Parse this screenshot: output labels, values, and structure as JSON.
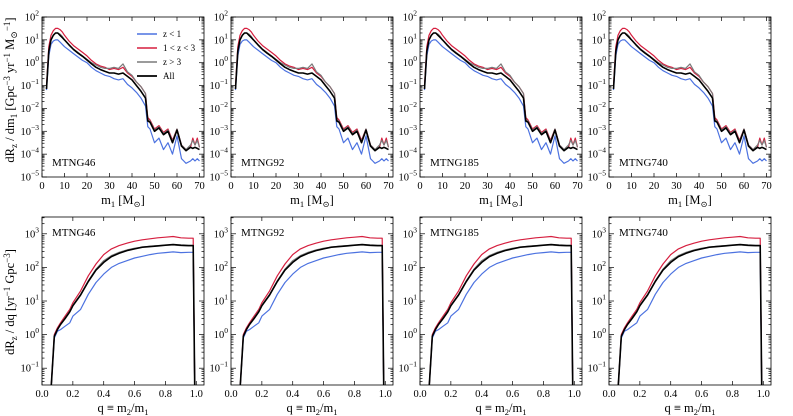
{
  "figure": {
    "top_row_ylabel": "dR_z / dm_1 [Gpc^-3 yr^-1 M_sun^-1]",
    "bottom_row_ylabel": "dR_z / dq [yr^-1 Gpc^-3]"
  },
  "chart_data": [
    {
      "type": "line",
      "row": "top",
      "panel_labels": [
        "MTNG46",
        "MTNG92",
        "MTNG185",
        "MTNG740"
      ],
      "xlabel": "m₁ [M⊙]",
      "ylabel": "dR_z/dm_1 [Gpc^-3 yr^-1 M_sun^-1]",
      "xlim": [
        0,
        72
      ],
      "xticks": [
        0,
        10,
        20,
        30,
        40,
        50,
        60,
        70
      ],
      "ylim_log10": [
        -5,
        2
      ],
      "yticks_log10": [
        -5,
        -4,
        -3,
        -2,
        -1,
        0,
        1,
        2
      ],
      "yscale": "log",
      "x": [
        2,
        3,
        4,
        5,
        6,
        7,
        8,
        9,
        10,
        12,
        14,
        16,
        18,
        20,
        22,
        24,
        26,
        28,
        30,
        32,
        34,
        36,
        38,
        40,
        42,
        44,
        46,
        47,
        48,
        50,
        52,
        54,
        56,
        58,
        60,
        62,
        63,
        64,
        66,
        67,
        68,
        69,
        70
      ],
      "series": [
        {
          "name": "z < 1",
          "color": "#4c72e0",
          "linewidth": 1.2,
          "log10_values": [
            -1.2,
            0.3,
            0.8,
            0.95,
            1.0,
            1.0,
            0.9,
            0.8,
            0.7,
            0.55,
            0.4,
            0.25,
            0.1,
            0.0,
            -0.2,
            -0.35,
            -0.45,
            -0.55,
            -0.6,
            -0.7,
            -0.75,
            -0.7,
            -0.95,
            -1.1,
            -1.3,
            -1.55,
            -1.9,
            -2.8,
            -2.9,
            -3.5,
            -3.3,
            -3.8,
            -3.5,
            -4.0,
            -3.2,
            -4.2,
            -4.3,
            -4.4,
            -4.3,
            -4.2,
            -4.3,
            -4.2,
            -4.3
          ]
        },
        {
          "name": "1 < z < 3",
          "color": "#d61f3f",
          "linewidth": 1.2,
          "log10_values": [
            -1.0,
            0.7,
            1.2,
            1.4,
            1.5,
            1.5,
            1.45,
            1.35,
            1.2,
            0.95,
            0.75,
            0.6,
            0.45,
            0.3,
            0.1,
            -0.05,
            -0.15,
            -0.2,
            -0.3,
            -0.25,
            -0.3,
            -0.2,
            -0.45,
            -0.6,
            -0.85,
            -1.05,
            -1.35,
            -2.4,
            -2.5,
            -2.9,
            -2.75,
            -3.05,
            -2.9,
            -3.4,
            -2.9,
            -3.6,
            -3.7,
            -3.8,
            -3.7,
            -3.3,
            -3.6,
            -3.3,
            -3.7
          ]
        },
        {
          "name": "z > 3",
          "color": "#7a7a7a",
          "linewidth": 1.2,
          "log10_values": [
            -1.1,
            0.5,
            1.0,
            1.2,
            1.3,
            1.3,
            1.25,
            1.15,
            1.0,
            0.8,
            0.6,
            0.45,
            0.3,
            0.15,
            0.0,
            -0.1,
            -0.2,
            -0.25,
            -0.25,
            -0.2,
            -0.25,
            -0.05,
            -0.4,
            -0.55,
            -0.85,
            -1.05,
            -1.35,
            -2.5,
            -2.55,
            -2.95,
            -2.8,
            -3.1,
            -2.95,
            -3.45,
            -2.9,
            -3.6,
            -3.7,
            -3.8,
            -3.6,
            -3.4,
            -3.6,
            -3.4,
            -3.7
          ]
        },
        {
          "name": "All",
          "color": "#000000",
          "linewidth": 1.6,
          "log10_values": [
            -1.15,
            0.5,
            1.0,
            1.2,
            1.3,
            1.3,
            1.2,
            1.1,
            1.0,
            0.78,
            0.58,
            0.42,
            0.28,
            0.12,
            -0.05,
            -0.2,
            -0.3,
            -0.38,
            -0.45,
            -0.45,
            -0.5,
            -0.45,
            -0.6,
            -0.75,
            -1.0,
            -1.25,
            -1.55,
            -2.55,
            -2.6,
            -3.0,
            -2.85,
            -3.15,
            -3.0,
            -3.5,
            -2.95,
            -3.65,
            -3.75,
            -3.85,
            -3.7,
            -3.75,
            -3.7,
            -3.75,
            -3.8
          ]
        }
      ],
      "legend": {
        "placement": "top-center",
        "panel": 0,
        "entries": [
          "z < 1",
          "1 < z < 3",
          "z > 3",
          "All"
        ]
      }
    },
    {
      "type": "line",
      "row": "bottom",
      "panel_labels": [
        "MTNG46",
        "MTNG92",
        "MTNG185",
        "MTNG740"
      ],
      "xlabel": "q ≡ m₂/m₁",
      "ylabel": "dR_z/dq [yr^-1 Gpc^-3]",
      "xlim": [
        0,
        1.05
      ],
      "xticks": [
        0.0,
        0.2,
        0.4,
        0.6,
        0.8,
        1.0
      ],
      "xtick_labels": [
        "0.0",
        "0.2",
        "0.4",
        "0.6",
        "0.8",
        "1.0"
      ],
      "ylim_log10": [
        -1.5,
        3.5
      ],
      "yticks_log10": [
        -1,
        0,
        1,
        2,
        3
      ],
      "yscale": "log",
      "x": [
        0.06,
        0.08,
        0.1,
        0.12,
        0.15,
        0.18,
        0.2,
        0.25,
        0.3,
        0.35,
        0.4,
        0.45,
        0.5,
        0.55,
        0.6,
        0.65,
        0.7,
        0.75,
        0.8,
        0.85,
        0.9,
        0.95,
        0.98,
        0.99
      ],
      "series": [
        {
          "name": "z < 1",
          "color": "#4c72e0",
          "linewidth": 1.2,
          "log10_values": [
            -1.5,
            -0.1,
            0.1,
            0.15,
            0.25,
            0.35,
            0.55,
            0.75,
            1.2,
            1.55,
            1.8,
            2.0,
            2.12,
            2.2,
            2.28,
            2.33,
            2.38,
            2.42,
            2.44,
            2.46,
            2.44,
            2.45,
            2.45,
            -1.5
          ]
        },
        {
          "name": "1 < z < 3",
          "color": "#d61f3f",
          "linewidth": 1.2,
          "log10_values": [
            -1.5,
            0.0,
            0.2,
            0.35,
            0.55,
            0.75,
            0.95,
            1.3,
            1.75,
            2.1,
            2.38,
            2.55,
            2.65,
            2.72,
            2.78,
            2.82,
            2.85,
            2.88,
            2.9,
            2.92,
            2.88,
            2.87,
            2.87,
            -1.5
          ]
        },
        {
          "name": "z > 3",
          "color": "#7a7a7a",
          "linewidth": 1.2,
          "log10_values": [
            -1.5,
            -0.05,
            0.15,
            0.3,
            0.5,
            0.7,
            0.88,
            1.2,
            1.6,
            1.95,
            2.2,
            2.35,
            2.45,
            2.52,
            2.57,
            2.6,
            2.63,
            2.65,
            2.66,
            2.67,
            2.65,
            2.64,
            2.64,
            -1.5
          ]
        },
        {
          "name": "All",
          "color": "#000000",
          "linewidth": 1.6,
          "log10_values": [
            -1.5,
            -0.05,
            0.15,
            0.3,
            0.48,
            0.68,
            0.86,
            1.18,
            1.58,
            1.92,
            2.15,
            2.32,
            2.42,
            2.5,
            2.55,
            2.6,
            2.62,
            2.64,
            2.66,
            2.68,
            2.66,
            2.65,
            2.65,
            -1.5
          ]
        }
      ]
    }
  ]
}
